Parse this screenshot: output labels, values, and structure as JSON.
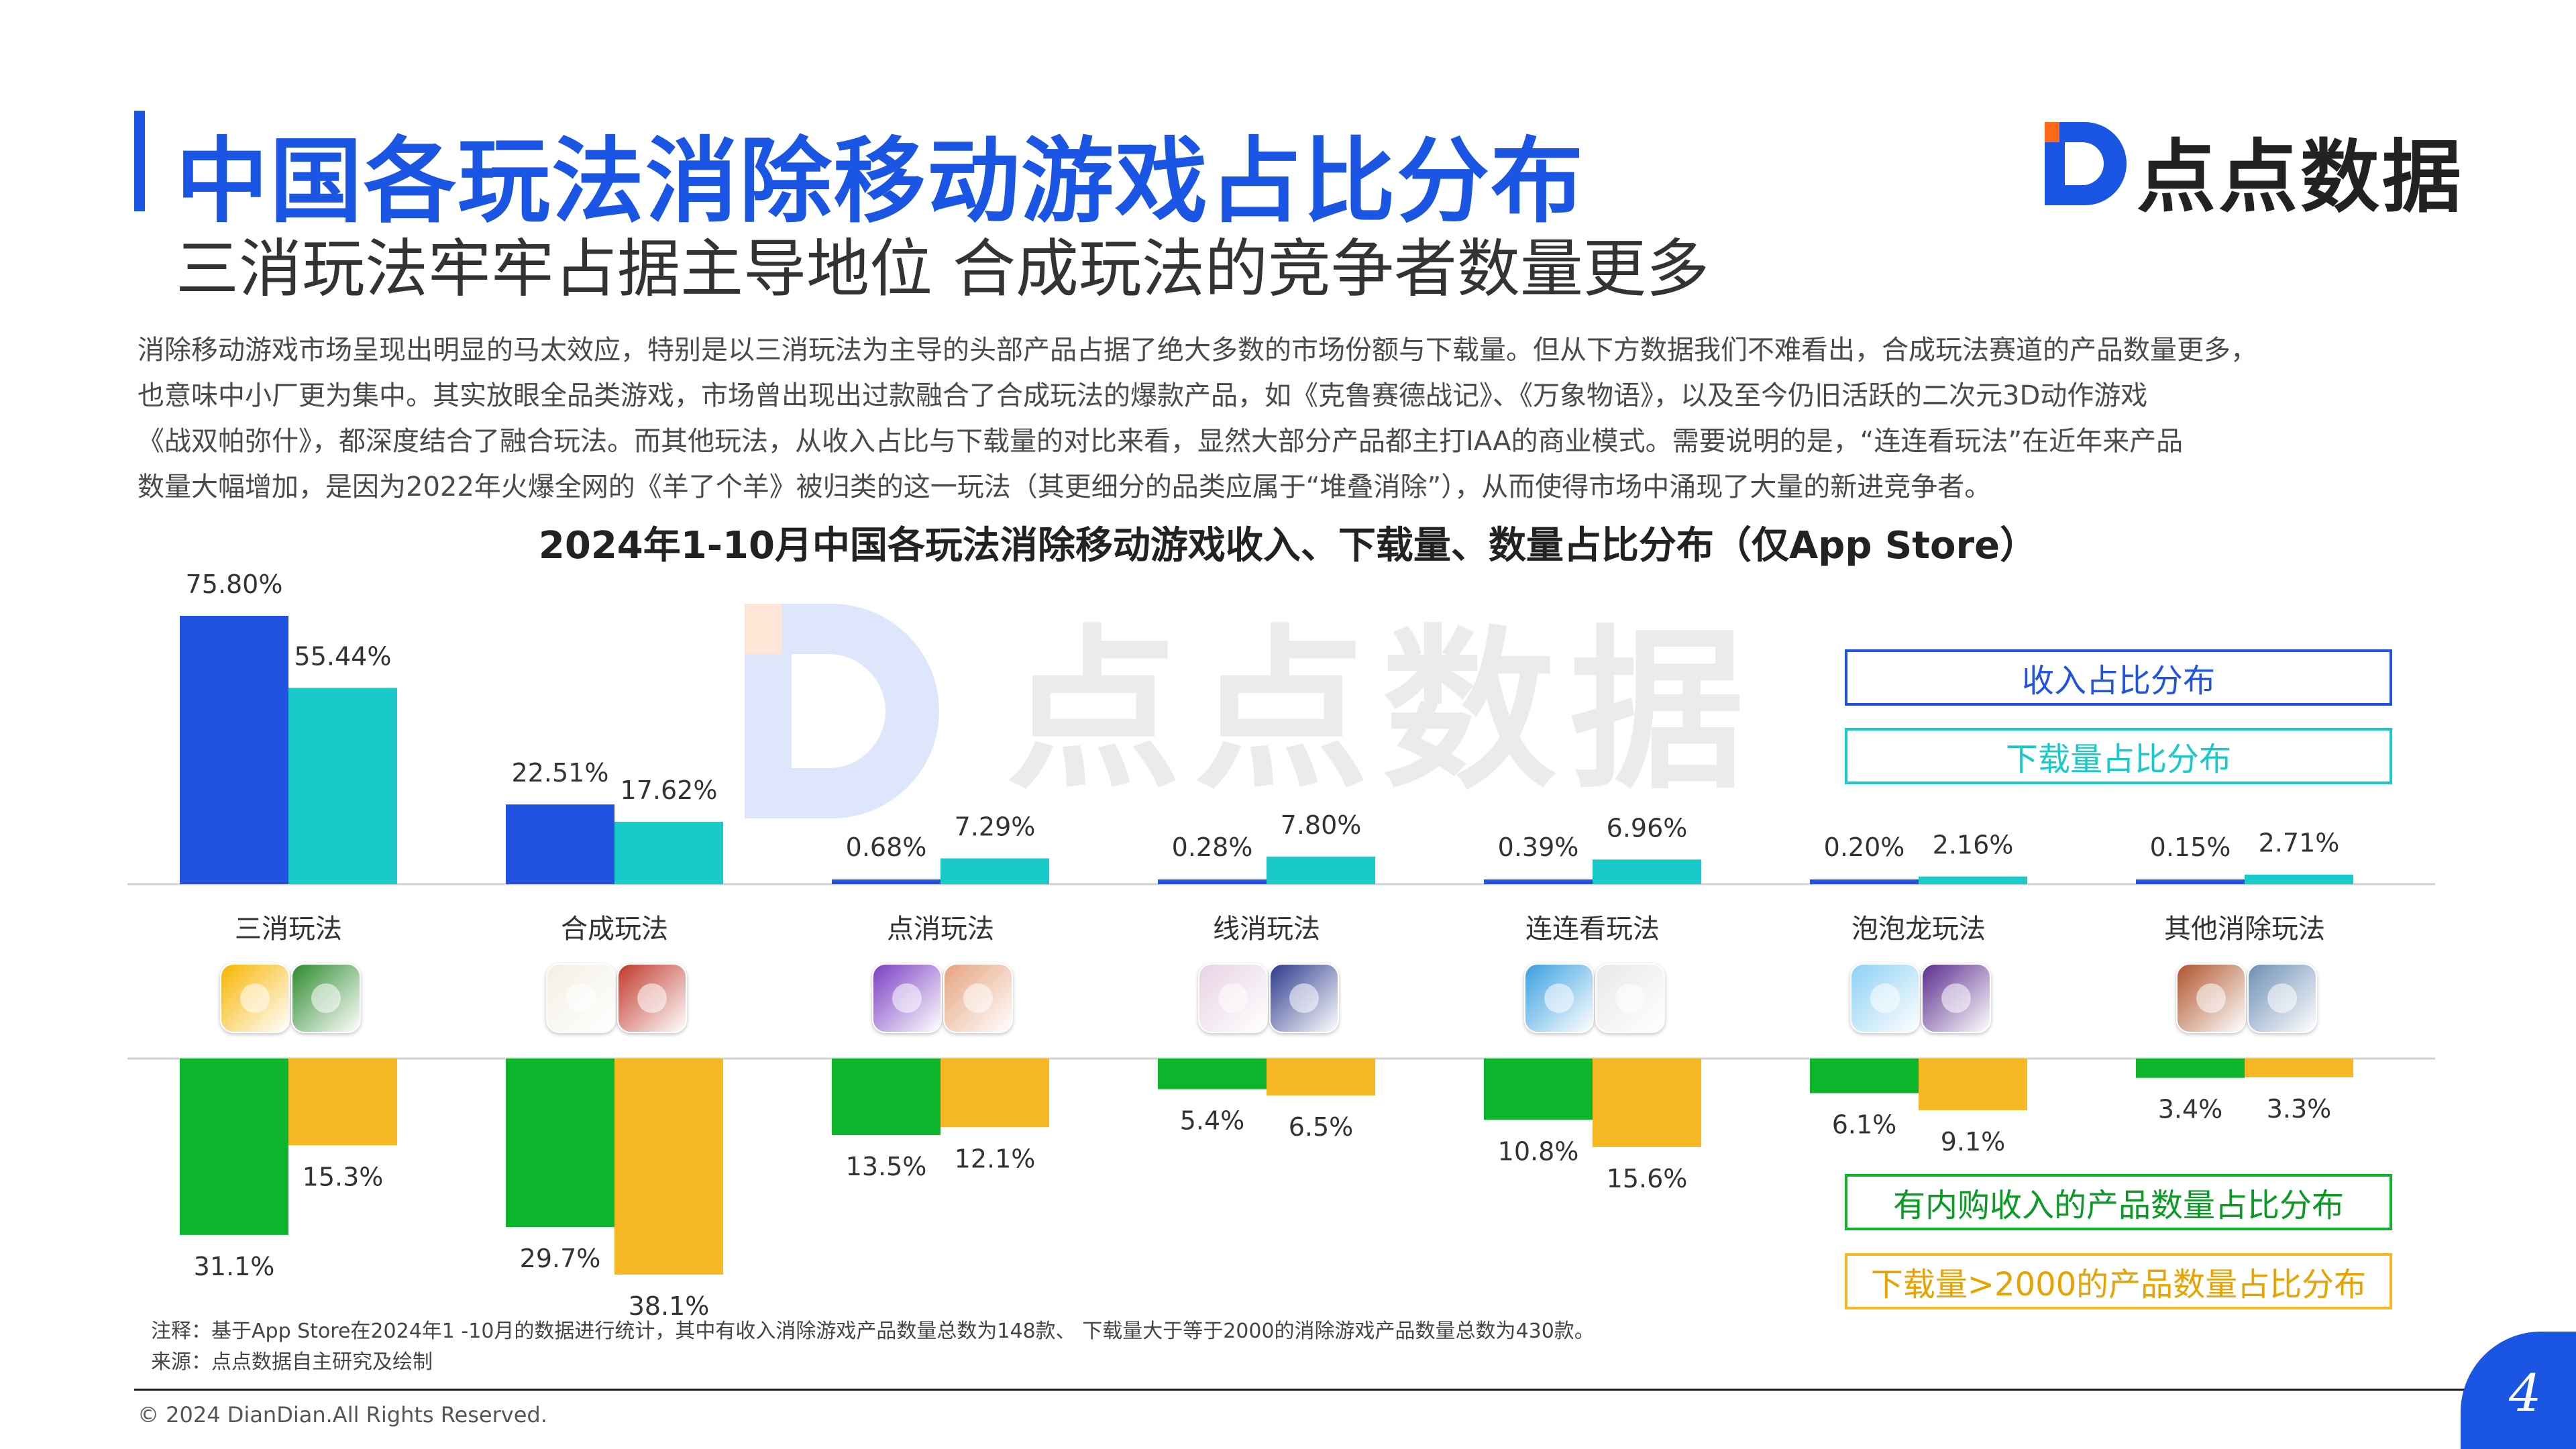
{
  "header": {
    "title": "中国各玩法消除移动游戏占比分布",
    "subtitle": "三消玩法牢牢占据主导地位 合成玩法的竞争者数量更多",
    "logo_text": "点点数据",
    "brand_color": "#1a55e3"
  },
  "intro": {
    "lines": [
      "消除移动游戏市场呈现出明显的马太效应，特别是以三消玩法为主导的头部产品占据了绝大多数的市场份额与下载量。但从下方数据我们不难看出，合成玩法赛道的产品数量更多，",
      "也意味中小厂更为集中。其实放眼全品类游戏，市场曾出现出过款融合了合成玩法的爆款产品，如《克鲁赛德战记》、《万象物语》，以及至今仍旧活跃的二次元3D动作游戏",
      "《战双帕弥什》，都深度结合了融合玩法。而其他玩法，从收入占比与下载量的对比来看，显然大部分产品都主打IAA的商业模式。需要说明的是，“连连看玩法”在近年来产品",
      "数量大幅增加，是因为2022年火爆全网的《羊了个羊》被归类的这一玩法（其更细分的品类应属于“堆叠消除”），从而使得市场中涌现了大量的新进竞争者。"
    ]
  },
  "chart_data": {
    "type": "bar",
    "title": "2024年1-10月中国各玩法消除移动游戏收入、下载量、数量占比分布（仅App Store）",
    "categories": [
      "三消玩法",
      "合成玩法",
      "点消玩法",
      "线消玩法",
      "连连看玩法",
      "泡泡龙玩法",
      "其他消除玩法"
    ],
    "upper_series": [
      {
        "name": "收入占比分布",
        "color": "#2153e0",
        "values": [
          75.8,
          22.51,
          0.68,
          0.28,
          0.39,
          0.2,
          0.15
        ],
        "labels": [
          "75.80%",
          "22.51%",
          "0.68%",
          "0.28%",
          "0.39%",
          "0.20%",
          "0.15%"
        ]
      },
      {
        "name": "下载量占比分布",
        "color": "#1ac9c9",
        "values": [
          55.44,
          17.62,
          7.29,
          7.8,
          6.96,
          2.16,
          2.71
        ],
        "labels": [
          "55.44%",
          "17.62%",
          "7.29%",
          "7.80%",
          "6.96%",
          "2.16%",
          "2.71%"
        ]
      }
    ],
    "lower_series": [
      {
        "name": "有内购收入的产品数量占比分布",
        "color": "#0db52c",
        "values": [
          31.1,
          29.7,
          13.5,
          5.4,
          10.8,
          6.1,
          3.4
        ],
        "labels": [
          "31.1%",
          "29.7%",
          "13.5%",
          "5.4%",
          "10.8%",
          "6.1%",
          "3.4%"
        ]
      },
      {
        "name": "下载量>2000的产品数量占比分布",
        "color": "#f5b823",
        "values": [
          15.3,
          38.1,
          12.1,
          6.5,
          15.6,
          9.1,
          3.3
        ],
        "labels": [
          "15.3%",
          "38.1%",
          "12.1%",
          "6.5%",
          "15.6%",
          "9.1%",
          "3.3%"
        ]
      }
    ],
    "upper_ylim": [
      0,
      75.8
    ],
    "lower_ylim": [
      0,
      38.1
    ],
    "legend_position": "right",
    "grid": false
  },
  "game_icons": [
    [
      "bird-icon",
      "forest-icon"
    ],
    [
      "sketch-icon",
      "lion-icon"
    ],
    [
      "star-candy-icon",
      "girl-icon"
    ],
    [
      "anime-girl-icon",
      "bubble-icon"
    ],
    [
      "cat-icon",
      "sheep-icon"
    ],
    [
      "bubble-grid-icon",
      "bubble-tree-icon"
    ],
    [
      "shelf-icon",
      "hero-icon"
    ]
  ],
  "footnote": {
    "note": "注释：基于App Store在2024年1  -10月的数据进行统计，其中有收入消除游戏产品数量总数为148款、 下载量大于等于2000的消除游戏产品数量总数为430款。",
    "source": "来源：点点数据自主研究及绘制"
  },
  "footer": {
    "copyright": "© 2024  DianDian.All  Rights  Reserved.",
    "page_number": "4"
  }
}
